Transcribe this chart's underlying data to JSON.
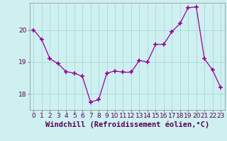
{
  "x": [
    0,
    1,
    2,
    3,
    4,
    5,
    6,
    7,
    8,
    9,
    10,
    11,
    12,
    13,
    14,
    15,
    16,
    17,
    18,
    19,
    20,
    21,
    22,
    23
  ],
  "y": [
    20.0,
    19.7,
    19.1,
    18.95,
    18.7,
    18.65,
    18.55,
    17.75,
    17.82,
    18.65,
    18.72,
    18.68,
    18.68,
    19.05,
    19.0,
    19.55,
    19.55,
    19.95,
    20.2,
    20.7,
    20.72,
    19.1,
    18.75,
    18.2
  ],
  "line_color": "#990099",
  "marker": "+",
  "marker_size": 4,
  "bg_color": "#cff0f0",
  "grid_color": "#a8d8d8",
  "xlabel": "Windchill (Refroidissement éolien,°C)",
  "xlabel_fontsize": 7.5,
  "tick_fontsize": 6.5,
  "ylim": [
    17.5,
    20.85
  ],
  "xlim": [
    -0.5,
    23.5
  ],
  "yticks": [
    18,
    19,
    20
  ],
  "xticks": [
    0,
    1,
    2,
    3,
    4,
    5,
    6,
    7,
    8,
    9,
    10,
    11,
    12,
    13,
    14,
    15,
    16,
    17,
    18,
    19,
    20,
    21,
    22,
    23
  ]
}
